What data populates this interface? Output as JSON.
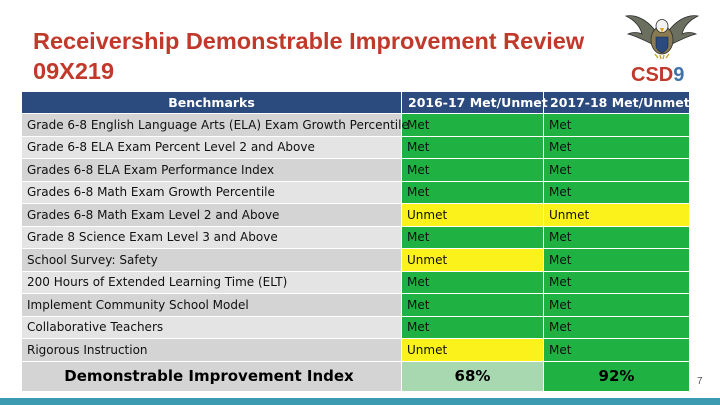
{
  "slide": {
    "title_line1": "Receivership Demonstrable Improvement Review",
    "title_line2": "09X219",
    "logo_text": "CSD",
    "logo_number": "9",
    "page_number": "7"
  },
  "colors": {
    "title": "#c0392b",
    "header_bg": "#2b4a7e",
    "met": "#1fb142",
    "unmet": "#fcf21b",
    "accent_bar": "#3c9bb0"
  },
  "table": {
    "headers": [
      "Benchmarks",
      "2016-17 Met/Unmet",
      "2017-18 Met/Unmet"
    ],
    "rows": [
      {
        "benchmark": "Grade 6-8 English Language Arts (ELA) Exam Growth Percentile",
        "y2016": "Met",
        "y2017": "Met"
      },
      {
        "benchmark": "Grade 6-8 ELA Exam Percent Level 2 and Above",
        "y2016": "Met",
        "y2017": "Met"
      },
      {
        "benchmark": "Grades 6-8 ELA Exam Performance Index",
        "y2016": "Met",
        "y2017": "Met"
      },
      {
        "benchmark": "Grades 6-8 Math Exam Growth Percentile",
        "y2016": "Met",
        "y2017": "Met"
      },
      {
        "benchmark": "Grades 6-8 Math Exam Level 2 and Above",
        "y2016": "Unmet",
        "y2017": "Unmet"
      },
      {
        "benchmark": "Grade 8 Science Exam Level 3 and Above",
        "y2016": "Met",
        "y2017": "Met"
      },
      {
        "benchmark": "School Survey: Safety",
        "y2016": "Unmet",
        "y2017": "Met"
      },
      {
        "benchmark": "200 Hours of Extended Learning Time (ELT)",
        "y2016": "Met",
        "y2017": "Met"
      },
      {
        "benchmark": "Implement Community School Model",
        "y2016": "Met",
        "y2017": "Met"
      },
      {
        "benchmark": "Collaborative Teachers",
        "y2016": "Met",
        "y2017": "Met"
      },
      {
        "benchmark": "Rigorous Instruction",
        "y2016": "Unmet",
        "y2017": "Met"
      }
    ],
    "footer": {
      "label": "Demonstrable Improvement Index",
      "y2016": "68%",
      "y2017": "92%"
    }
  }
}
